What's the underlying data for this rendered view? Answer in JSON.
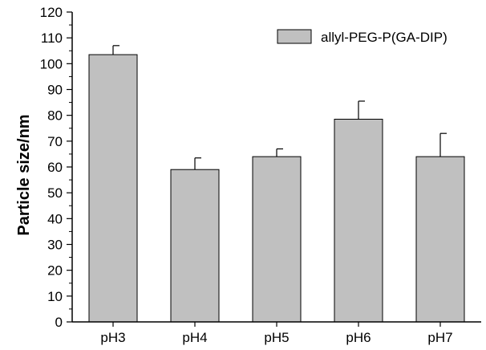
{
  "chart_data": {
    "type": "bar",
    "categories": [
      "pH3",
      "pH4",
      "pH5",
      "pH6",
      "pH7"
    ],
    "series": [
      {
        "name": "allyl-PEG-P(GA-DIP)",
        "values": [
          103.5,
          59,
          64,
          78.5,
          64
        ],
        "errors": [
          3.5,
          4.5,
          3,
          7,
          9
        ]
      }
    ],
    "ylabel": "Particle size/nm",
    "xlabel": "",
    "ylim": [
      0,
      120
    ],
    "yticks": [
      0,
      10,
      20,
      30,
      40,
      50,
      60,
      70,
      80,
      90,
      100,
      110,
      120
    ],
    "grid": false,
    "legend_position": "top-right",
    "colors": {
      "bar_fill": "#c0c0c0",
      "bar_stroke": "#000000"
    }
  }
}
